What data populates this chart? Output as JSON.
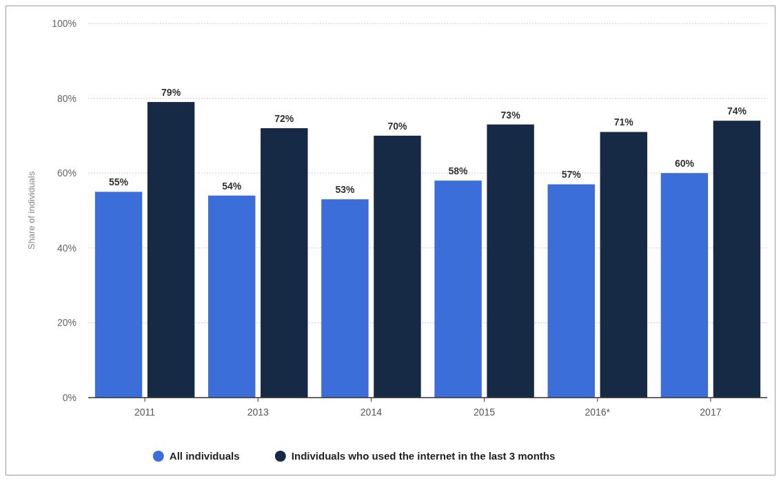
{
  "chart_data": {
    "type": "bar",
    "ylabel": "Share of individuals",
    "categories": [
      "2011",
      "2013",
      "2014",
      "2015",
      "2016*",
      "2017"
    ],
    "series": [
      {
        "name": "All individuals",
        "color": "#3b6ed8",
        "values": [
          55,
          54,
          53,
          58,
          57,
          60
        ],
        "value_labels": [
          "55%",
          "54%",
          "53%",
          "58%",
          "57%",
          "60%"
        ]
      },
      {
        "name": "Individuals who used the internet in the last 3 months",
        "color": "#172a45",
        "values": [
          79,
          72,
          70,
          73,
          71,
          74
        ],
        "value_labels": [
          "79%",
          "72%",
          "70%",
          "73%",
          "71%",
          "74%"
        ]
      }
    ],
    "ylim": [
      0,
      100
    ],
    "yticks": [
      {
        "value": 0,
        "label": "0%"
      },
      {
        "value": 20,
        "label": "20%"
      },
      {
        "value": 40,
        "label": "40%"
      },
      {
        "value": 60,
        "label": "60%"
      },
      {
        "value": 80,
        "label": "80%"
      },
      {
        "value": 100,
        "label": "100%"
      }
    ],
    "grid": "y",
    "legend": "bottom"
  }
}
